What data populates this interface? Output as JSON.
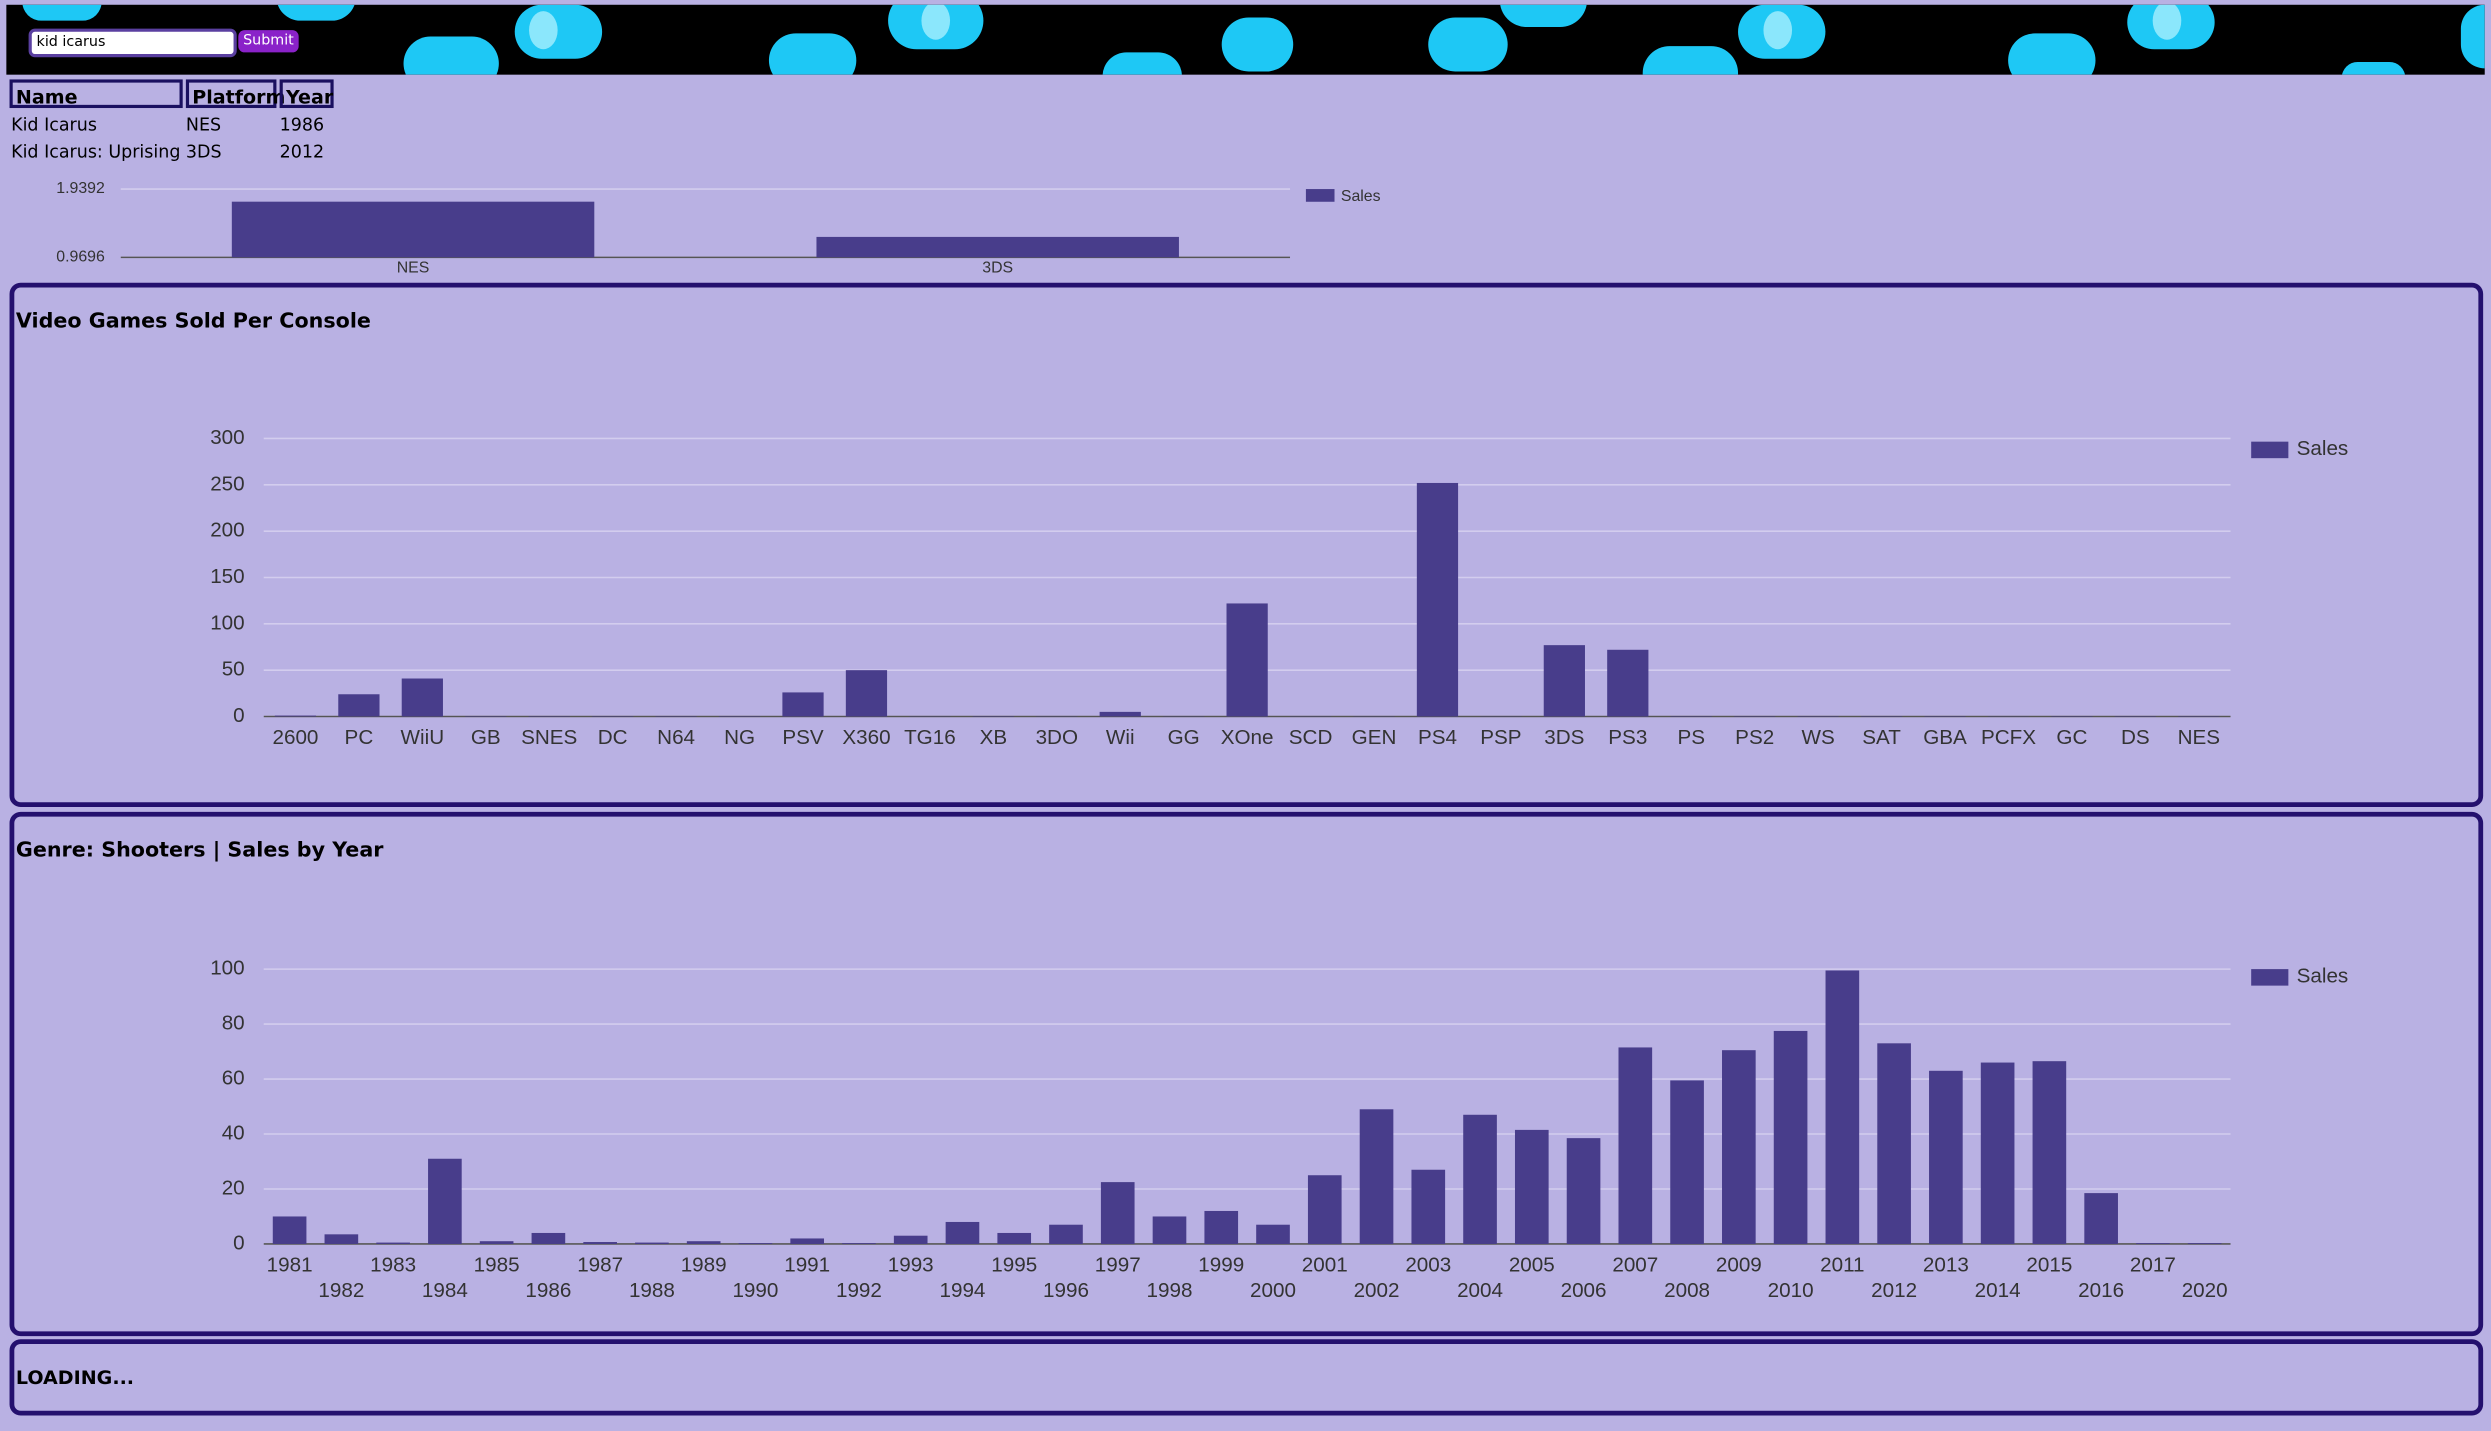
{
  "search": {
    "query": "kid icarus",
    "button": "Submit"
  },
  "table": {
    "columns": [
      "Name",
      "Platform",
      "Year"
    ],
    "rows": [
      [
        "Kid Icarus",
        "NES",
        1986
      ],
      [
        "Kid Icarus: Uprising",
        "3DS",
        2012
      ]
    ]
  },
  "chart_data": [
    {
      "type": "bar",
      "categories": [
        "NES",
        "3DS"
      ],
      "series": [
        {
          "name": "Sales",
          "color": "#483d8b",
          "values": [
            1.76,
            1.26
          ]
        }
      ],
      "ylim": [
        0.9696,
        1.9392
      ],
      "yticks": [
        0.9696,
        1.9392
      ],
      "grid": true,
      "legend": "right"
    },
    {
      "type": "bar",
      "title": "Video Games Sold Per Console",
      "categories": [
        "2600",
        "PC",
        "WiiU",
        "GB",
        "SNES",
        "DC",
        "N64",
        "NG",
        "PSV",
        "X360",
        "TG16",
        "XB",
        "3DO",
        "Wii",
        "GG",
        "XOne",
        "SCD",
        "GEN",
        "PS4",
        "PSP",
        "3DS",
        "PS3",
        "PS",
        "PS2",
        "WS",
        "SAT",
        "GBA",
        "PCFX",
        "GC",
        "DS",
        "NES"
      ],
      "series": [
        {
          "name": "Sales",
          "color": "#483d8b",
          "values": [
            1,
            24,
            41,
            0.5,
            0.5,
            0.5,
            0.5,
            0.5,
            26,
            50,
            0.3,
            0.5,
            0.3,
            5,
            0.3,
            122,
            0.3,
            0.3,
            252,
            0.3,
            77,
            72,
            0.5,
            0.5,
            0.5,
            0.5,
            0.5,
            0.3,
            0.5,
            0.5,
            0.5
          ]
        }
      ],
      "ylim": [
        0,
        300
      ],
      "yticks": [
        0,
        50,
        100,
        150,
        200,
        250,
        300
      ],
      "grid": true,
      "legend": "right"
    },
    {
      "type": "bar",
      "title": "Genre: Shooters | Sales by Year",
      "categories": [
        "1981",
        "1982",
        "1983",
        "1984",
        "1985",
        "1986",
        "1987",
        "1988",
        "1989",
        "1990",
        "1991",
        "1992",
        "1993",
        "1994",
        "1995",
        "1996",
        "1997",
        "1998",
        "1999",
        "2000",
        "2001",
        "2002",
        "2003",
        "2004",
        "2005",
        "2006",
        "2007",
        "2008",
        "2009",
        "2010",
        "2011",
        "2012",
        "2013",
        "2014",
        "2015",
        "2016",
        "2017",
        "2020"
      ],
      "series": [
        {
          "name": "Sales",
          "color": "#483d8b",
          "values": [
            10,
            3.5,
            0.5,
            31,
            1,
            4,
            0.7,
            0.5,
            1,
            0.3,
            2,
            0.3,
            3,
            8,
            4,
            7,
            22.5,
            10,
            12,
            7,
            25,
            49,
            27,
            47,
            41.5,
            38.5,
            71.5,
            59.5,
            70.5,
            77.5,
            99.5,
            73,
            63,
            66,
            66.5,
            18.5,
            0.3,
            0.3
          ]
        }
      ],
      "ylim": [
        0,
        100
      ],
      "yticks": [
        0,
        20,
        40,
        60,
        80,
        100
      ],
      "grid": true,
      "legend": "right"
    }
  ],
  "loading": "LOADING..."
}
